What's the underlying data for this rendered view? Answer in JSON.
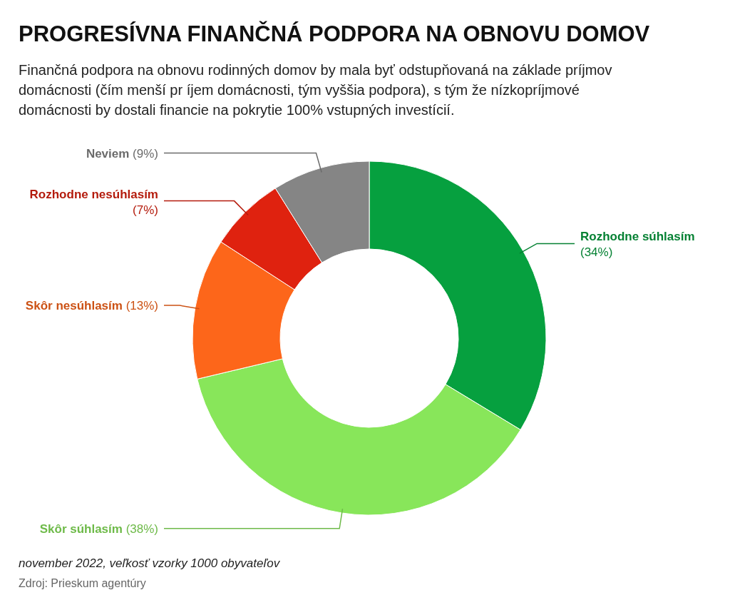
{
  "chart_data": {
    "type": "donut",
    "title": "PROGRESÍVNA FINANČNÁ PODPORA NA OBNOVU DOMOV",
    "subtitle": "Finančná podpora na obnovu rodinných domov by mala byť odstupňovaná na základe príjmov domácnosti (čím menší pr íjem domácnosti, tým vyššia podpora), s tým že nízkopríjmové domácnosti by dostali financie na pokrytie 100% vstupných investícií.",
    "categories": [
      "Rozhodne súhlasím",
      "Skôr súhlasím",
      "Skôr nesúhlasím",
      "Rozhodne nesúhlasím",
      "Neviem"
    ],
    "values": [
      34,
      38,
      13,
      7,
      9
    ],
    "colors": [
      "#06a03f",
      "#88e65a",
      "#fd661a",
      "#df220f",
      "#858585"
    ],
    "value_labels": [
      "(34%)",
      "(38%)",
      "(13%)",
      "(7%)",
      "(9%)"
    ],
    "annotations": [
      "november 2022, veľkosť vzorky 1000 obyvateľov",
      "Zdroj: Prieskum agentúry"
    ]
  }
}
